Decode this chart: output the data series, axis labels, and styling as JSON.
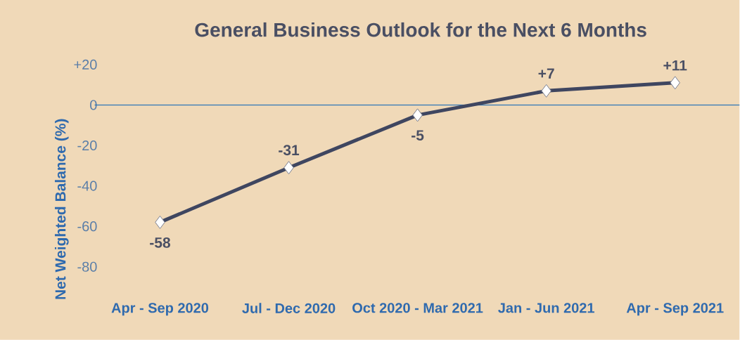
{
  "chart_data": {
    "type": "line",
    "title": "General Business Outlook for the Next 6 Months",
    "ylabel": "Net Weighted Balance (%)",
    "categories": [
      "Apr - Sep 2020",
      "Jul - Dec 2020",
      "Oct 2020 - Mar 2021",
      "Jan - Jun 2021",
      "Apr - Sep 2021"
    ],
    "values": [
      -58,
      -31,
      -5,
      7,
      11
    ],
    "value_labels": [
      "-58",
      "-31",
      "-5",
      "+7",
      "+11"
    ],
    "color": "#3f4660",
    "marker": "diamond",
    "line_style": "solid",
    "grid": false,
    "ylim": [
      -80,
      20
    ],
    "yticks": [
      {
        "value": 20,
        "label": "+20"
      },
      0,
      -20,
      -40,
      -60,
      -80
    ],
    "ref_lines": [
      {
        "axis": "y",
        "value": 0,
        "color": "#2e75b6"
      }
    ]
  }
}
